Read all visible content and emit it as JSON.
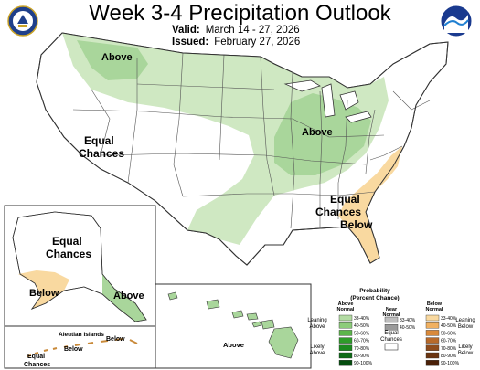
{
  "header": {
    "title": "Week 3-4 Precipitation Outlook",
    "valid_label": "Valid:",
    "valid_value": "March 14 - 27, 2026",
    "issued_label": "Issued:",
    "issued_value": "February 27, 2026"
  },
  "logos": {
    "left": "commerce-seal-icon",
    "right": "noaa-logo-icon"
  },
  "map_labels": {
    "above_northwest": "Above",
    "equal_chances_west_1": "Equal",
    "equal_chances_west_2": "Chances",
    "above_midwest": "Above",
    "equal_chances_southeast_1": "Equal",
    "equal_chances_southeast_2": "Chances",
    "below_southeast": "Below",
    "alaska_equal_1": "Equal",
    "alaska_equal_2": "Chances",
    "alaska_below": "Below",
    "alaska_above": "Above",
    "aleutian_title": "Aleutian Islands",
    "aleutian_below_right": "Below",
    "aleutian_below_left": "Below",
    "aleutian_equal_1": "Equal",
    "aleutian_equal_2": "Chances",
    "hawaii_above": "Above"
  },
  "legend": {
    "title_1": "Probability",
    "title_2": "(Percent Chance)",
    "col_above_1": "Above",
    "col_above_2": "Normal",
    "col_near_1": "Near",
    "col_near_2": "Normal",
    "col_below_1": "Below",
    "col_below_2": "Normal",
    "leaning_above_1": "Leaning",
    "leaning_above_2": "Above",
    "likely_above_1": "Likely",
    "likely_above_2": "Above",
    "leaning_below_1": "Leaning",
    "leaning_below_2": "Below",
    "likely_below_1": "Likely",
    "likely_below_2": "Below",
    "equal_chances_1": "Equal",
    "equal_chances_2": "Chances",
    "above_bins": [
      {
        "range": "33-40%",
        "color": "#b3dba3"
      },
      {
        "range": "40-50%",
        "color": "#8ccc7a"
      },
      {
        "range": "50-60%",
        "color": "#5cb54b"
      },
      {
        "range": "60-70%",
        "color": "#2f9c2a"
      },
      {
        "range": "70-80%",
        "color": "#1c8a1f"
      },
      {
        "range": "80-90%",
        "color": "#0d6b16"
      },
      {
        "range": "90-100%",
        "color": "#054d0e"
      }
    ],
    "near_bins": [
      {
        "range": "33-40%",
        "color": "#bfbfbf"
      },
      {
        "range": "40-50%",
        "color": "#9a9a9a"
      }
    ],
    "below_bins": [
      {
        "range": "33-40%",
        "color": "#f9d9a0"
      },
      {
        "range": "40-50%",
        "color": "#f0b060"
      },
      {
        "range": "50-60%",
        "color": "#d9893a"
      },
      {
        "range": "60-70%",
        "color": "#b86a2a"
      },
      {
        "range": "70-80%",
        "color": "#8f4c1c"
      },
      {
        "range": "80-90%",
        "color": "#6b3410"
      },
      {
        "range": "90-100%",
        "color": "#4a2008"
      }
    ]
  },
  "colors": {
    "above_light": "#cfe8c2",
    "above_medium": "#a9d69b",
    "below_light": "#f9d9a0",
    "state_lines": "#555555"
  }
}
